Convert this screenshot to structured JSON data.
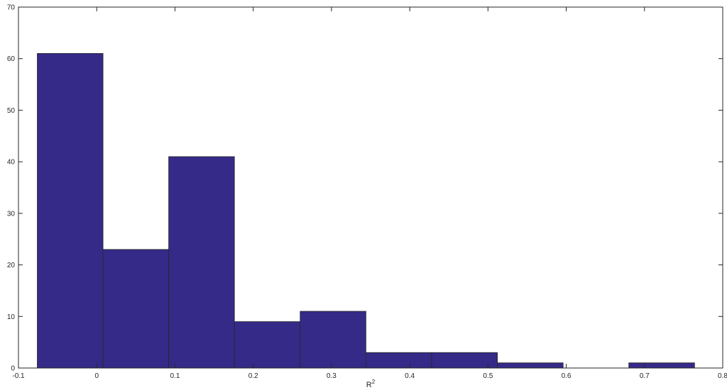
{
  "chart_data": {
    "type": "bar",
    "title": "",
    "xlabel": "R",
    "xlabel_superscript": "2",
    "ylabel": "",
    "xlim": [
      -0.1,
      0.8
    ],
    "ylim": [
      0,
      70
    ],
    "x_ticks": [
      -0.1,
      0,
      0.1,
      0.2,
      0.3,
      0.4,
      0.5,
      0.6,
      0.7,
      0.8
    ],
    "x_tick_labels": [
      "-0.1",
      "0",
      "0.1",
      "0.2",
      "0.3",
      "0.4",
      "0.5",
      "0.6",
      "0.7",
      "0.8"
    ],
    "y_ticks": [
      0,
      10,
      20,
      30,
      40,
      50,
      60,
      70
    ],
    "y_tick_labels": [
      "0",
      "10",
      "20",
      "30",
      "40",
      "50",
      "60",
      "70"
    ],
    "bin_edges": [
      -0.076,
      0.008,
      0.092,
      0.176,
      0.26,
      0.344,
      0.428,
      0.512,
      0.596,
      0.68,
      0.764
    ],
    "values": [
      61,
      23,
      41,
      9,
      11,
      3,
      3,
      1,
      0,
      1
    ],
    "bar_color": "#352a87",
    "bar_edge_color": "#262626",
    "grid": false,
    "box": true
  }
}
